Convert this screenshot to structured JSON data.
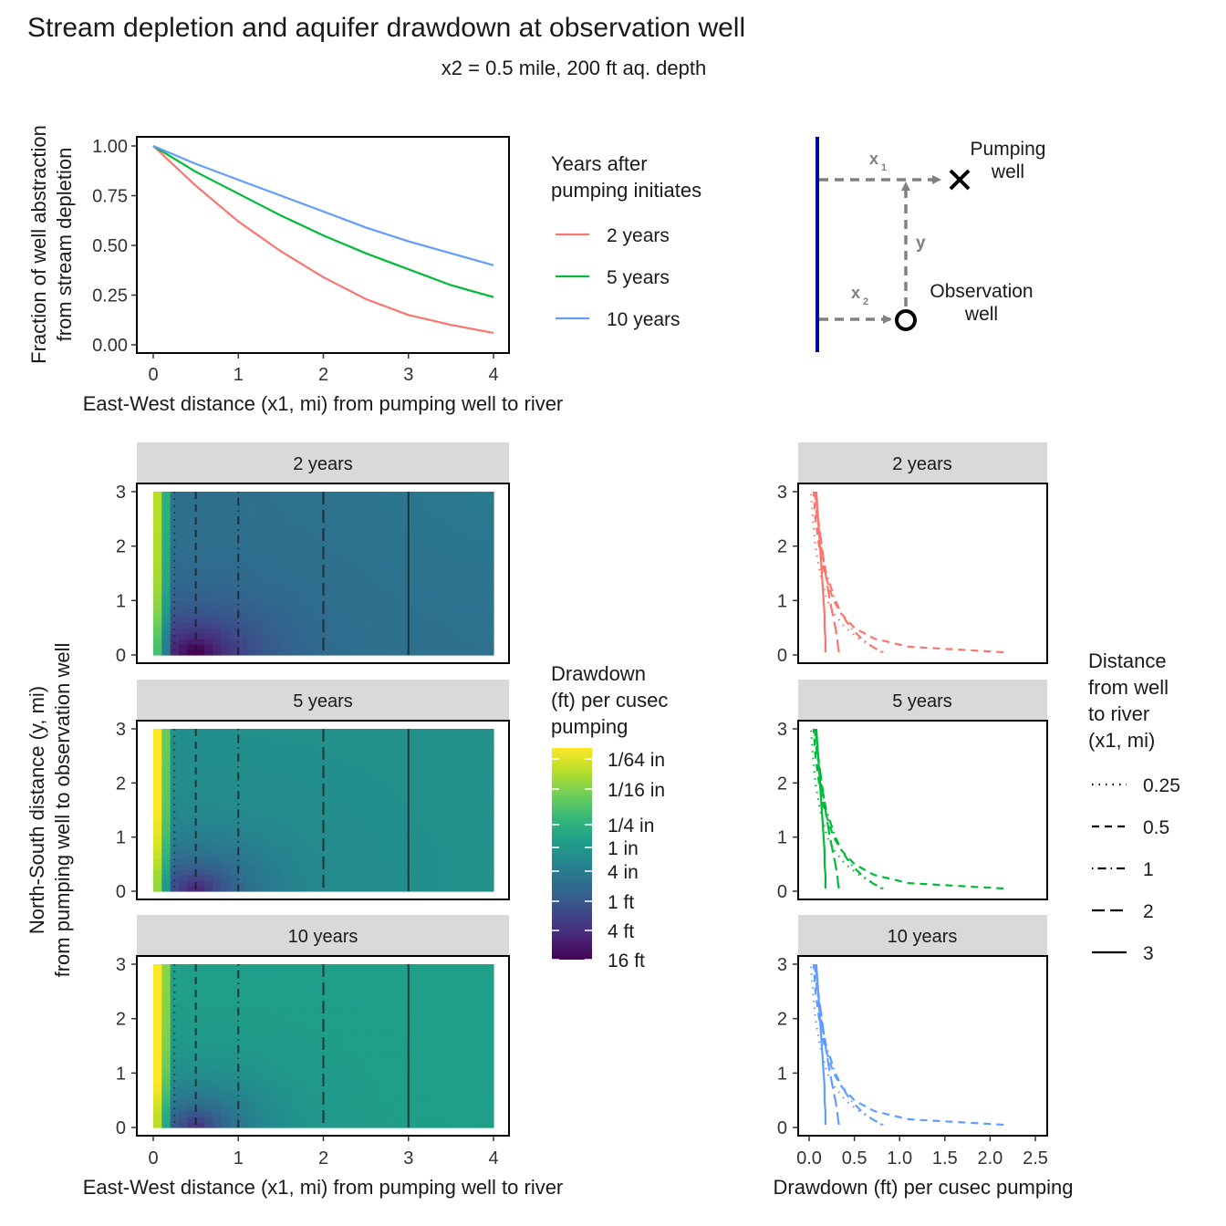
{
  "figure": {
    "title": "Stream depletion and aquifer drawdown at observation well",
    "subtitle": "x2 = 0.5 mile, 200 ft aq. depth"
  },
  "chart_data": [
    {
      "id": "depletion",
      "type": "line",
      "xlabel": "East-West distance (x1, mi) from pumping well to river",
      "ylabel_lines": [
        "Fraction of well abstraction",
        "from stream depletion"
      ],
      "xlim": [
        0,
        4
      ],
      "ylim": [
        0,
        1
      ],
      "xticks": [
        0,
        1,
        2,
        3,
        4
      ],
      "xtick_labels": [
        "0",
        "1",
        "2",
        "3",
        "4"
      ],
      "yticks": [
        0,
        0.25,
        0.5,
        0.75,
        1
      ],
      "ytick_labels": [
        "0.00",
        "0.25",
        "0.50",
        "0.75",
        "1.00"
      ],
      "grid": false,
      "legend": {
        "position": "right",
        "title_lines": [
          "Years after",
          "pumping initiates"
        ]
      },
      "x": [
        0,
        0.5,
        1,
        1.5,
        2,
        2.5,
        3,
        3.5,
        4
      ],
      "series": [
        {
          "name": "2 years",
          "color": "#F8766D",
          "values": [
            1.0,
            0.8,
            0.62,
            0.47,
            0.34,
            0.23,
            0.15,
            0.1,
            0.06
          ]
        },
        {
          "name": "5 years",
          "color": "#00BA38",
          "values": [
            1.0,
            0.87,
            0.76,
            0.65,
            0.55,
            0.46,
            0.38,
            0.3,
            0.24
          ]
        },
        {
          "name": "10 years",
          "color": "#619CFF",
          "values": [
            1.0,
            0.91,
            0.83,
            0.75,
            0.67,
            0.59,
            0.52,
            0.46,
            0.4
          ]
        }
      ]
    },
    {
      "id": "drawdown-map",
      "type": "heatmap",
      "xlabel": "East-West distance (x1, mi) from pumping well to river",
      "ylabel_lines": [
        "North-South distance (y, mi)",
        "from pumping well to observation well"
      ],
      "xlim": [
        0,
        4
      ],
      "ylim": [
        0,
        3
      ],
      "xticks": [
        0,
        1,
        2,
        3,
        4
      ],
      "xtick_labels": [
        "0",
        "1",
        "2",
        "3",
        "4"
      ],
      "yticks": [
        0,
        1,
        2,
        3
      ],
      "ytick_labels": [
        "0",
        "1",
        "2",
        "3"
      ],
      "facets": [
        "2 years",
        "5 years",
        "10 years"
      ],
      "reference_lines_x1": [
        0.25,
        0.5,
        1,
        2,
        3
      ],
      "colorbar": {
        "title_lines": [
          "Drawdown",
          "(ft) per cusec",
          "pumping"
        ],
        "labels": [
          "1/64 in",
          "1/16 in",
          "1/4 in",
          "1 in",
          "4 in",
          "1 ft",
          "4 ft",
          "16 ft"
        ],
        "colors": [
          "#FDE725",
          "#B5DE2B",
          "#6ECE58",
          "#35B779",
          "#1F9E89",
          "#26828E",
          "#31688E",
          "#3E4989",
          "#482878",
          "#440154"
        ]
      }
    },
    {
      "id": "drawdown-profiles",
      "type": "line",
      "xlabel": "Drawdown (ft) per cusec pumping",
      "xlim": [
        0,
        2.5
      ],
      "ylim": [
        0,
        3
      ],
      "xticks": [
        0,
        0.5,
        1,
        1.5,
        2,
        2.5
      ],
      "xtick_labels": [
        "0.0",
        "0.5",
        "1.0",
        "1.5",
        "2.0",
        "2.5"
      ],
      "yticks": [
        0,
        1,
        2,
        3
      ],
      "ytick_labels": [
        "0",
        "1",
        "2",
        "3"
      ],
      "facets": [
        {
          "name": "2 years",
          "color": "#F8766D"
        },
        {
          "name": "5 years",
          "color": "#00BA38"
        },
        {
          "name": "10 years",
          "color": "#619CFF"
        }
      ],
      "y": [
        0.05,
        0.15,
        0.3,
        0.5,
        0.75,
        1.0,
        1.5,
        2.0,
        2.5,
        3.0
      ],
      "series": [
        {
          "name": "0.25",
          "x1": 0.25,
          "linetype": "dotted",
          "values": [
            0.82,
            0.7,
            0.55,
            0.4,
            0.28,
            0.2,
            0.12,
            0.07,
            0.04,
            0.02
          ]
        },
        {
          "name": "0.5",
          "x1": 0.5,
          "linetype": "dashed",
          "values": [
            2.15,
            1.1,
            0.72,
            0.5,
            0.36,
            0.27,
            0.17,
            0.11,
            0.07,
            0.05
          ]
        },
        {
          "name": "1",
          "x1": 1,
          "linetype": "dotdash",
          "values": [
            0.8,
            0.7,
            0.58,
            0.46,
            0.36,
            0.29,
            0.19,
            0.13,
            0.09,
            0.06
          ]
        },
        {
          "name": "2",
          "x1": 2,
          "linetype": "longdash",
          "values": [
            0.33,
            0.32,
            0.31,
            0.29,
            0.26,
            0.23,
            0.18,
            0.14,
            0.1,
            0.07
          ]
        },
        {
          "name": "3",
          "x1": 3,
          "linetype": "solid",
          "values": [
            0.18,
            0.18,
            0.18,
            0.17,
            0.17,
            0.16,
            0.14,
            0.12,
            0.1,
            0.08
          ]
        }
      ],
      "legend": {
        "position": "right",
        "title_lines": [
          "Distance",
          "from well",
          "to river",
          "(x1, mi)"
        ]
      }
    }
  ],
  "schematic": {
    "label_x1": "x",
    "label_x1_sub": "1",
    "label_x2": "x",
    "label_x2_sub": "2",
    "label_y": "y",
    "pumping_lines": [
      "Pumping",
      "well"
    ],
    "observation_lines": [
      "Observation",
      "well"
    ],
    "river_color": "#0000AA"
  }
}
